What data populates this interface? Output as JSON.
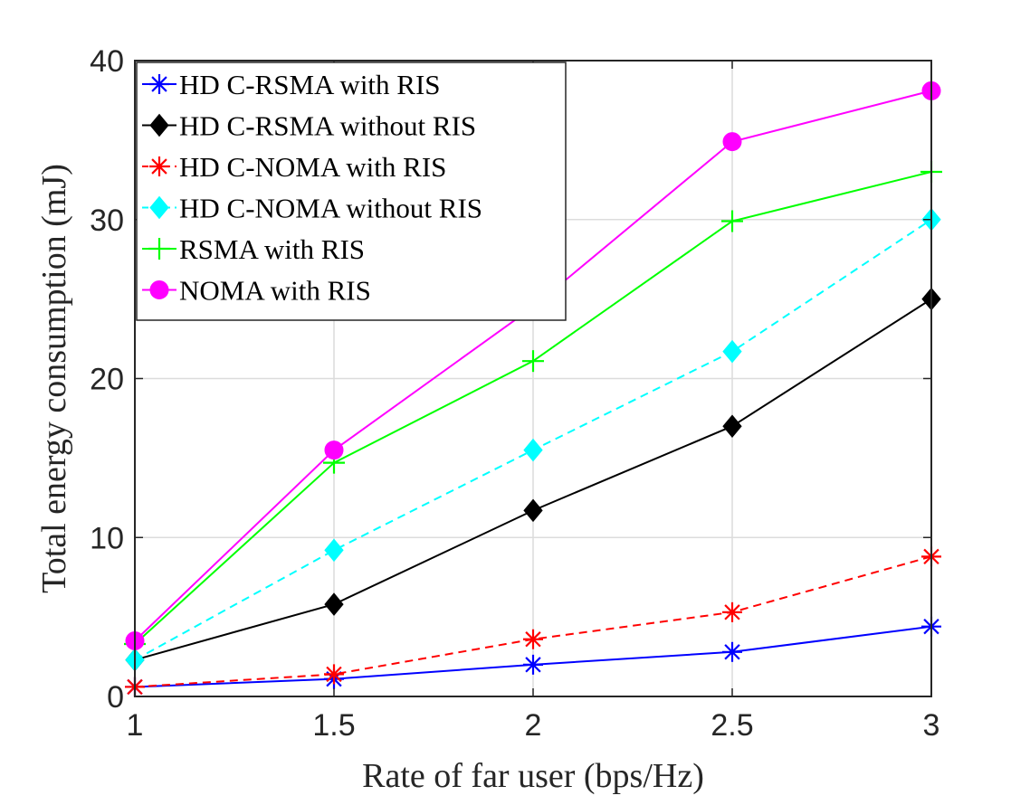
{
  "chart_data": {
    "type": "line",
    "title": "",
    "xlabel": "Rate of far user (bps/Hz)",
    "ylabel": "Total energy consumption (mJ)",
    "x": [
      1,
      1.5,
      2,
      2.5,
      3
    ],
    "xlim": [
      1,
      3
    ],
    "ylim": [
      0,
      40
    ],
    "xticks": [
      1,
      1.5,
      2,
      2.5,
      3
    ],
    "xtick_labels": [
      "1",
      "1.5",
      "2",
      "2.5",
      "3"
    ],
    "yticks": [
      0,
      10,
      20,
      30,
      40
    ],
    "ytick_labels": [
      "0",
      "10",
      "20",
      "30",
      "40"
    ],
    "grid": true,
    "legend_position": "top-left",
    "series": [
      {
        "name": "HD C-RSMA with RIS",
        "values": [
          0.6,
          1.1,
          2.0,
          2.8,
          4.4
        ],
        "color": "#0000ff",
        "dash": "solid",
        "marker": "asterisk",
        "marker_fill": "none"
      },
      {
        "name": "HD C-RSMA without RIS",
        "values": [
          2.3,
          5.8,
          11.7,
          17.0,
          25.0
        ],
        "color": "#000000",
        "dash": "solid",
        "marker": "diamond",
        "marker_fill": "#000000"
      },
      {
        "name": "HD C-NOMA with RIS",
        "values": [
          0.6,
          1.4,
          3.6,
          5.3,
          8.8
        ],
        "color": "#ff0000",
        "dash": "dashed",
        "marker": "asterisk",
        "marker_fill": "none"
      },
      {
        "name": "HD C-NOMA without RIS",
        "values": [
          2.3,
          9.2,
          15.5,
          21.7,
          30.0
        ],
        "color": "#00ffff",
        "dash": "dashed",
        "marker": "diamond",
        "marker_fill": "#00ffff"
      },
      {
        "name": "RSMA with RIS",
        "values": [
          3.3,
          14.7,
          21.1,
          29.9,
          33.0
        ],
        "color": "#00ff00",
        "dash": "solid",
        "marker": "plus",
        "marker_fill": "none"
      },
      {
        "name": "NOMA with RIS",
        "values": [
          3.5,
          15.5,
          24.5,
          34.9,
          38.1
        ],
        "color": "#ff00ff",
        "dash": "solid",
        "marker": "circle",
        "marker_fill": "#ff00ff"
      }
    ]
  }
}
